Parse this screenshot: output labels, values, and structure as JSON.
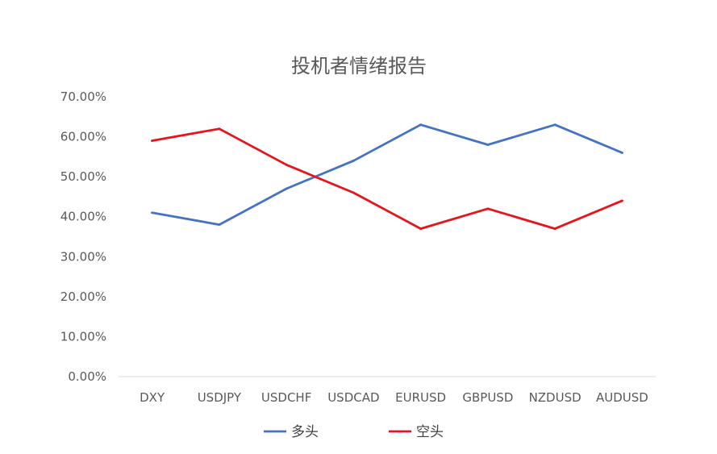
{
  "chart_data": {
    "type": "line",
    "title": "投机者情绪报告",
    "categories": [
      "DXY",
      "USDJPY",
      "USDCHF",
      "USDCAD",
      "EURUSD",
      "GBPUSD",
      "NZDUSD",
      "AUDUSD"
    ],
    "series": [
      {
        "name": "多头",
        "color": "#4472c4",
        "values": [
          0.41,
          0.38,
          0.47,
          0.54,
          0.63,
          0.58,
          0.63,
          0.56
        ]
      },
      {
        "name": "空头",
        "color": "#e8131b",
        "values": [
          0.59,
          0.62,
          0.53,
          0.46,
          0.37,
          0.42,
          0.37,
          0.44
        ]
      }
    ],
    "yticks": [
      "0.00%",
      "10.00%",
      "20.00%",
      "30.00%",
      "40.00%",
      "50.00%",
      "60.00%",
      "70.00%"
    ],
    "ylim": [
      0,
      0.7
    ],
    "grid": false,
    "legend_position": "bottom"
  }
}
